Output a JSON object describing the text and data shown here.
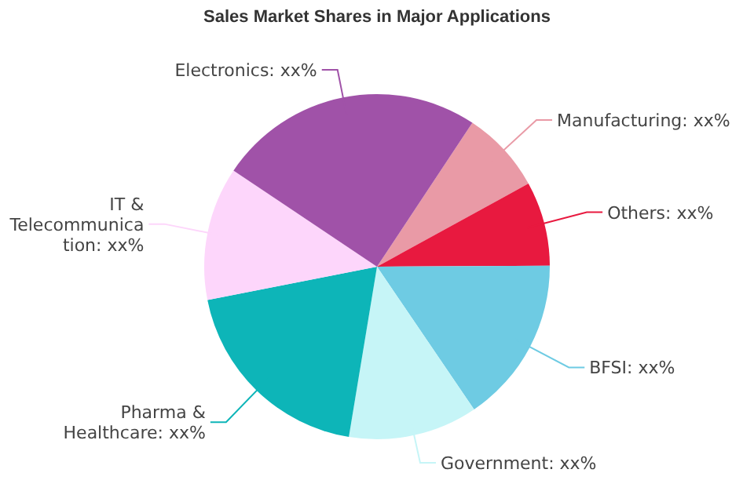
{
  "chart_data": {
    "type": "pie",
    "title": "Sales Market Shares in Major Applications",
    "categories": [
      "Manufacturing",
      "Others",
      "BFSI",
      "Government",
      "Pharma & Healthcare",
      "IT & Telecommunication",
      "Electronics"
    ],
    "values": [
      7.7,
      7.9,
      15.6,
      12.1,
      19.3,
      12.5,
      24.9
    ],
    "colors": [
      "#e99aa6",
      "#e8193f",
      "#6ecbe3",
      "#c6f5f7",
      "#0db5b8",
      "#fdd6fb",
      "#a052a8"
    ],
    "value_labels": [
      "xx%",
      "xx%",
      "xx%",
      "xx%",
      "xx%",
      "xx%",
      "xx%"
    ]
  }
}
